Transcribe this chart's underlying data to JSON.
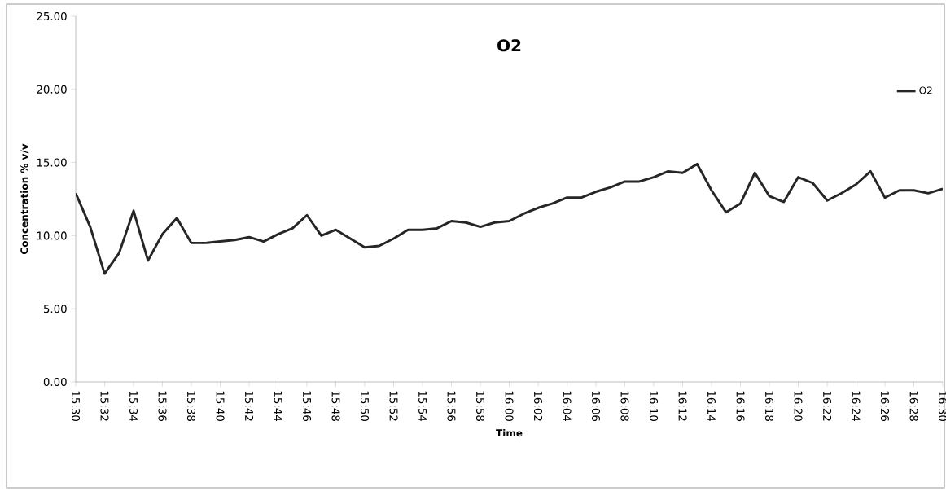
{
  "chart_data": {
    "type": "line",
    "title": "O2",
    "xlabel": "Time",
    "ylabel": "Concentration % v/v",
    "x": [
      15.5,
      15.5167,
      15.5333,
      15.55,
      15.5667,
      15.5833,
      15.6,
      15.6167,
      15.6333,
      15.65,
      15.6667,
      15.6833,
      15.7,
      15.7167,
      15.7333,
      15.75,
      15.7667,
      15.7833,
      15.8,
      15.8167,
      15.8333,
      15.85,
      15.8667,
      15.8833,
      15.9,
      15.9167,
      15.9333,
      15.95,
      15.9667,
      15.9833,
      16.0,
      16.0167,
      16.0333,
      16.05,
      16.0667,
      16.0833,
      16.1,
      16.1167,
      16.1333,
      16.15,
      16.1667,
      16.1833,
      16.2,
      16.2167,
      16.2333,
      16.25,
      16.2667,
      16.2833,
      16.3,
      16.3167,
      16.3333,
      16.35,
      16.3667,
      16.3833,
      16.4,
      16.4167,
      16.4333,
      16.45,
      16.4667,
      16.4833,
      16.5
    ],
    "series": [
      {
        "name": "O2",
        "color": "#262626",
        "values": [
          12.9,
          10.6,
          7.4,
          8.8,
          11.7,
          8.3,
          10.1,
          11.2,
          9.5,
          9.5,
          9.6,
          9.7,
          9.9,
          9.6,
          10.1,
          10.5,
          11.4,
          10.0,
          10.4,
          9.8,
          9.2,
          9.3,
          9.8,
          10.4,
          10.4,
          10.5,
          11.0,
          10.9,
          10.6,
          10.9,
          11.0,
          11.5,
          11.9,
          12.2,
          12.6,
          12.6,
          13.0,
          13.3,
          13.7,
          13.7,
          14.0,
          14.4,
          14.3,
          14.9,
          13.1,
          11.6,
          12.2,
          14.3,
          12.7,
          12.3,
          14.0,
          13.6,
          12.4,
          12.9,
          13.5,
          14.4,
          12.6,
          13.1,
          13.1,
          12.9,
          13.2
        ]
      }
    ],
    "xlim": [
      15.5,
      16.5
    ],
    "xticks": [
      {
        "value": 15.5,
        "label": "15:30"
      },
      {
        "value": 15.5333,
        "label": "15:32"
      },
      {
        "value": 15.5667,
        "label": "15:34"
      },
      {
        "value": 15.6,
        "label": "15:36"
      },
      {
        "value": 15.6333,
        "label": "15:38"
      },
      {
        "value": 15.6667,
        "label": "15:40"
      },
      {
        "value": 15.7,
        "label": "15:42"
      },
      {
        "value": 15.7333,
        "label": "15:44"
      },
      {
        "value": 15.7667,
        "label": "15:46"
      },
      {
        "value": 15.8,
        "label": "15:48"
      },
      {
        "value": 15.8333,
        "label": "15:50"
      },
      {
        "value": 15.8667,
        "label": "15:52"
      },
      {
        "value": 15.9,
        "label": "15:54"
      },
      {
        "value": 15.9333,
        "label": "15:56"
      },
      {
        "value": 15.9667,
        "label": "15:58"
      },
      {
        "value": 16.0,
        "label": "16:00"
      },
      {
        "value": 16.0333,
        "label": "16:02"
      },
      {
        "value": 16.0667,
        "label": "16:04"
      },
      {
        "value": 16.1,
        "label": "16:06"
      },
      {
        "value": 16.1333,
        "label": "16:08"
      },
      {
        "value": 16.1667,
        "label": "16:10"
      },
      {
        "value": 16.2,
        "label": "16:12"
      },
      {
        "value": 16.2333,
        "label": "16:14"
      },
      {
        "value": 16.2667,
        "label": "16:16"
      },
      {
        "value": 16.3,
        "label": "16:18"
      },
      {
        "value": 16.3333,
        "label": "16:20"
      },
      {
        "value": 16.3667,
        "label": "16:22"
      },
      {
        "value": 16.4,
        "label": "16:24"
      },
      {
        "value": 16.4333,
        "label": "16:26"
      },
      {
        "value": 16.4667,
        "label": "16:28"
      },
      {
        "value": 16.5,
        "label": "16:30"
      }
    ],
    "ylim": [
      0,
      25
    ],
    "yticks": [
      {
        "value": 0,
        "label": "0.00"
      },
      {
        "value": 5,
        "label": "5.00"
      },
      {
        "value": 10,
        "label": "10.00"
      },
      {
        "value": 15,
        "label": "15.00"
      },
      {
        "value": 20,
        "label": "20.00"
      },
      {
        "value": 25,
        "label": "25.00"
      }
    ],
    "grid": false,
    "legend": "top right",
    "marker": "none",
    "line_style": "solid"
  }
}
